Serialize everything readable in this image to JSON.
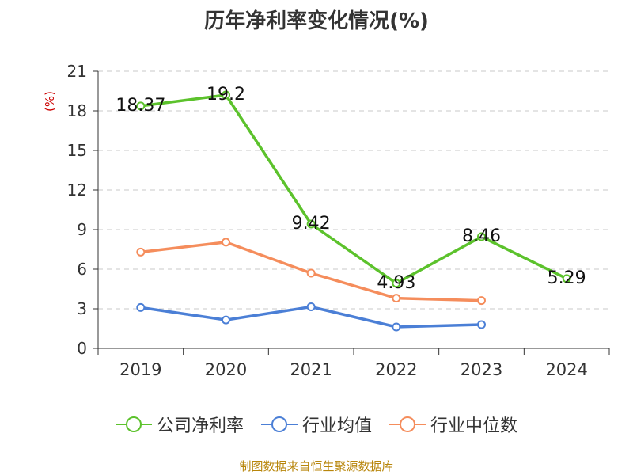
{
  "title": "历年净利率变化情况(%)",
  "source": "制图数据来自恒生聚源数据库",
  "chart_data": {
    "type": "line",
    "ylabel": "(%)",
    "ylim": [
      0,
      21
    ],
    "yticks": [
      0,
      3,
      6,
      9,
      12,
      15,
      18,
      21
    ],
    "grid": "horizontal-dashed",
    "legend_position": "bottom",
    "categories": [
      "2019",
      "2020",
      "2021",
      "2022",
      "2023",
      "2024"
    ],
    "series": [
      {
        "name": "公司净利率",
        "color": "#5cc22c",
        "values": [
          18.37,
          19.2,
          9.42,
          4.93,
          8.46,
          5.29
        ],
        "labels": [
          "18.37",
          "19.2",
          "9.42",
          "4.93",
          "8.46",
          "5.29"
        ]
      },
      {
        "name": "行业均值",
        "color": "#4b7fd6",
        "values": [
          3.1,
          2.15,
          3.15,
          1.62,
          1.8,
          null
        ]
      },
      {
        "name": "行业中位数",
        "color": "#f58d5c",
        "values": [
          7.3,
          8.05,
          5.7,
          3.8,
          3.62,
          null
        ]
      }
    ]
  }
}
